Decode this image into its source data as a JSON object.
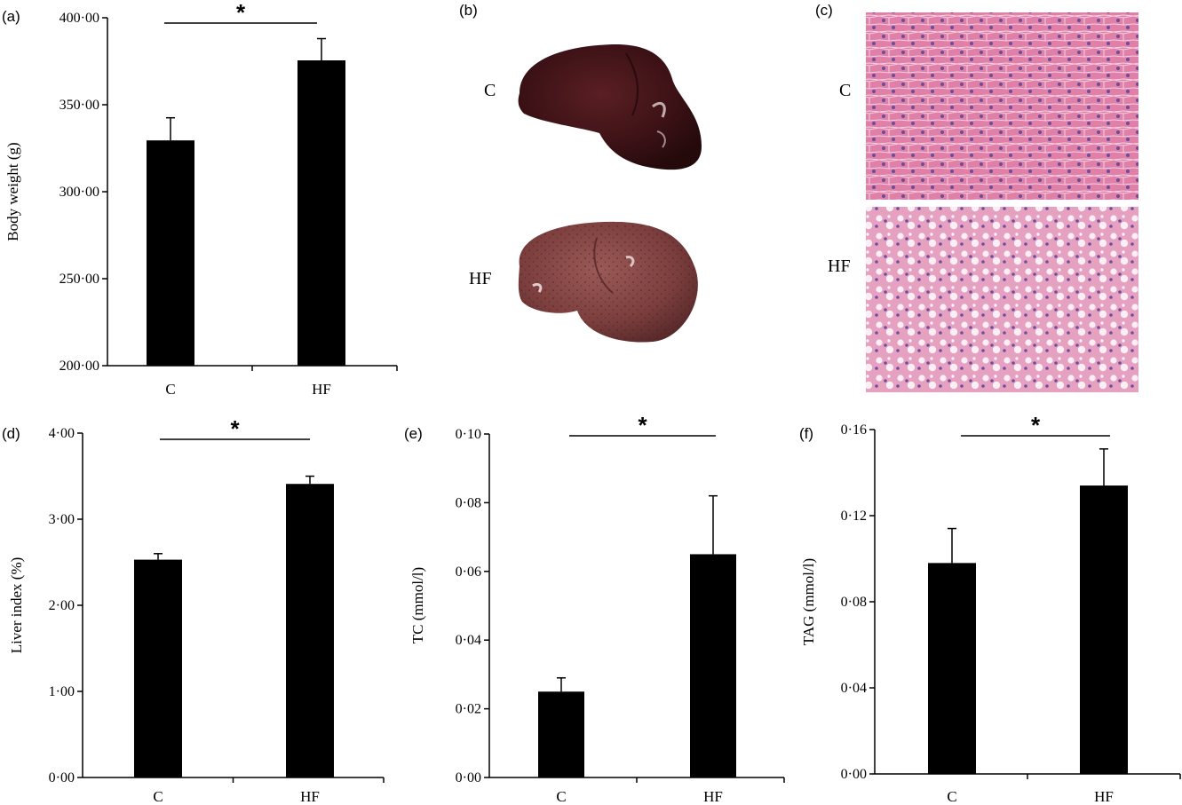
{
  "figure": {
    "panel_labels": [
      "(a)",
      "(b)",
      "(c)",
      "(d)",
      "(e)",
      "(f)"
    ],
    "photo_groups": [
      "C",
      "HF"
    ],
    "significance_marker": "*"
  },
  "chart_data": [
    {
      "id": "a",
      "type": "bar",
      "categories": [
        "C",
        "HF"
      ],
      "values": [
        329.5,
        375.5
      ],
      "errors": [
        13,
        12.5
      ],
      "ylabel": "Body weight (g)",
      "ylim": [
        200,
        400
      ],
      "yticks": [
        200,
        250,
        300,
        350,
        400
      ],
      "ytick_labels": [
        "200·00",
        "250·00",
        "300·00",
        "350·00",
        "400·00"
      ],
      "significance": "*",
      "bar_color": "#000000",
      "grid": false
    },
    {
      "id": "d",
      "type": "bar",
      "categories": [
        "C",
        "HF"
      ],
      "values": [
        2.53,
        3.41
      ],
      "errors": [
        0.07,
        0.09
      ],
      "ylabel": "Liver index (%)",
      "ylim": [
        0,
        4
      ],
      "yticks": [
        0,
        1,
        2,
        3,
        4
      ],
      "ytick_labels": [
        "0·00",
        "1·00",
        "2·00",
        "3·00",
        "4·00"
      ],
      "significance": "*",
      "bar_color": "#000000",
      "grid": false
    },
    {
      "id": "e",
      "type": "bar",
      "categories": [
        "C",
        "HF"
      ],
      "values": [
        0.025,
        0.065
      ],
      "errors": [
        0.004,
        0.017
      ],
      "ylabel": "TC (mmol/l)",
      "ylim": [
        0,
        0.1
      ],
      "yticks": [
        0,
        0.02,
        0.04,
        0.06,
        0.08,
        0.1
      ],
      "ytick_labels": [
        "0·00",
        "0·02",
        "0·04",
        "0·06",
        "0·08",
        "0·10"
      ],
      "significance": "*",
      "bar_color": "#000000",
      "grid": false
    },
    {
      "id": "f",
      "type": "bar",
      "categories": [
        "C",
        "HF"
      ],
      "values": [
        0.098,
        0.134
      ],
      "errors": [
        0.016,
        0.017
      ],
      "ylabel": "TAG (mmol/l)",
      "ylim": [
        0,
        0.16
      ],
      "yticks": [
        0,
        0.04,
        0.08,
        0.12,
        0.16
      ],
      "ytick_labels": [
        "0·00",
        "0·04",
        "0·08",
        "0·12",
        "0·16"
      ],
      "significance": "*",
      "bar_color": "#000000",
      "grid": false
    }
  ]
}
